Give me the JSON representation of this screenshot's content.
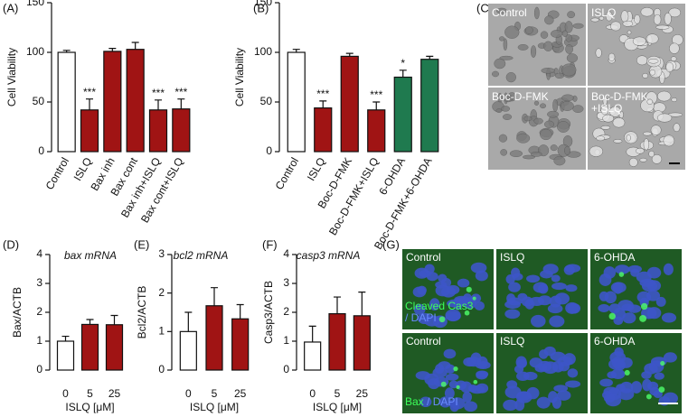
{
  "chart_data": [
    {
      "type": "bar",
      "panel": "(A)",
      "ylabel": "Cell Viability",
      "categories": [
        "Control",
        "ISLQ",
        "Bax inh",
        "Bax cont",
        "Bax inh+ISLQ",
        "Bax cont+ISLQ"
      ],
      "values": [
        100,
        42,
        101,
        103,
        42,
        43
      ],
      "errors": [
        2,
        11,
        3,
        7,
        10,
        10
      ],
      "colors": [
        "#ffffff",
        "#a01414",
        "#a01414",
        "#a01414",
        "#a01414",
        "#a01414"
      ],
      "ylim": [
        0,
        150
      ],
      "yticks": [
        0,
        50,
        100,
        150
      ],
      "annotations": [
        {
          "category": "ISLQ",
          "text": "***"
        },
        {
          "category": "Bax inh+ISLQ",
          "text": "***"
        },
        {
          "category": "Bax cont+ISLQ",
          "text": "***"
        }
      ]
    },
    {
      "type": "bar",
      "panel": "(B)",
      "ylabel": "Cell Viability",
      "categories": [
        "Control",
        "ISLQ",
        "Boc-D-FMK",
        "Boc-D-FMK+ISLQ",
        "6-OHDA",
        "Boc-D-FMK+6-OHDA"
      ],
      "values": [
        100,
        44,
        96,
        42,
        75,
        93
      ],
      "errors": [
        3,
        7,
        3,
        8,
        7,
        3
      ],
      "colors": [
        "#ffffff",
        "#a01414",
        "#a01414",
        "#a01414",
        "#1f7a4f",
        "#1f7a4f"
      ],
      "ylim": [
        0,
        150
      ],
      "yticks": [
        0,
        50,
        100,
        150
      ],
      "annotations": [
        {
          "category": "ISLQ",
          "text": "***"
        },
        {
          "category": "Boc-D-FMK+ISLQ",
          "text": "***"
        },
        {
          "category": "6-OHDA",
          "text": "*"
        }
      ]
    },
    {
      "type": "bar",
      "panel": "(D)",
      "title": "bax mRNA",
      "ylabel": "Bax/ACTB",
      "xlabel": "ISLQ [μM]",
      "categories": [
        "0",
        "5",
        "25"
      ],
      "values": [
        1.0,
        1.58,
        1.57
      ],
      "errors": [
        0.17,
        0.17,
        0.32
      ],
      "colors": [
        "#ffffff",
        "#a01414",
        "#a01414"
      ],
      "ylim": [
        0,
        4
      ],
      "yticks": [
        0,
        1,
        2,
        3,
        4
      ]
    },
    {
      "type": "bar",
      "panel": "(E)",
      "title": "bcl2 mRNA",
      "ylabel": "Bcl2/ACTB",
      "xlabel": "ISLQ [μM]",
      "categories": [
        "0",
        "5",
        "25"
      ],
      "values": [
        1.0,
        1.67,
        1.33
      ],
      "errors": [
        0.5,
        0.47,
        0.37
      ],
      "colors": [
        "#ffffff",
        "#a01414",
        "#a01414"
      ],
      "ylim": [
        0,
        3
      ],
      "yticks": [
        0,
        1,
        2,
        3
      ]
    },
    {
      "type": "bar",
      "panel": "(F)",
      "title": "casp3 mRNA",
      "ylabel": "Casp3/ACTB",
      "xlabel": "ISLQ [μM]",
      "categories": [
        "0",
        "5",
        "25"
      ],
      "values": [
        0.97,
        1.95,
        1.88
      ],
      "errors": [
        0.55,
        0.58,
        0.82
      ],
      "colors": [
        "#ffffff",
        "#a01414",
        "#a01414"
      ],
      "ylim": [
        0,
        4
      ],
      "yticks": [
        0,
        1,
        2,
        3,
        4
      ]
    }
  ],
  "micrographs": {
    "panel": "(C)",
    "labels": [
      [
        "Control"
      ],
      [
        "ISLQ"
      ],
      [
        "Boc-D-FMK"
      ],
      [
        "Boc-D-FMK",
        "+ISLQ"
      ]
    ]
  },
  "fluorescence": {
    "panel": "(G)",
    "rows": [
      {
        "labels": [
          "Control",
          "ISLQ",
          "6-OHDA"
        ],
        "marker": "Cleaved Cas3",
        "dapi": "/ DAPI"
      },
      {
        "labels": [
          "Control",
          "ISLQ",
          "6-OHDA"
        ],
        "marker": "Bax",
        "dapi": "/ DAPI"
      }
    ]
  }
}
